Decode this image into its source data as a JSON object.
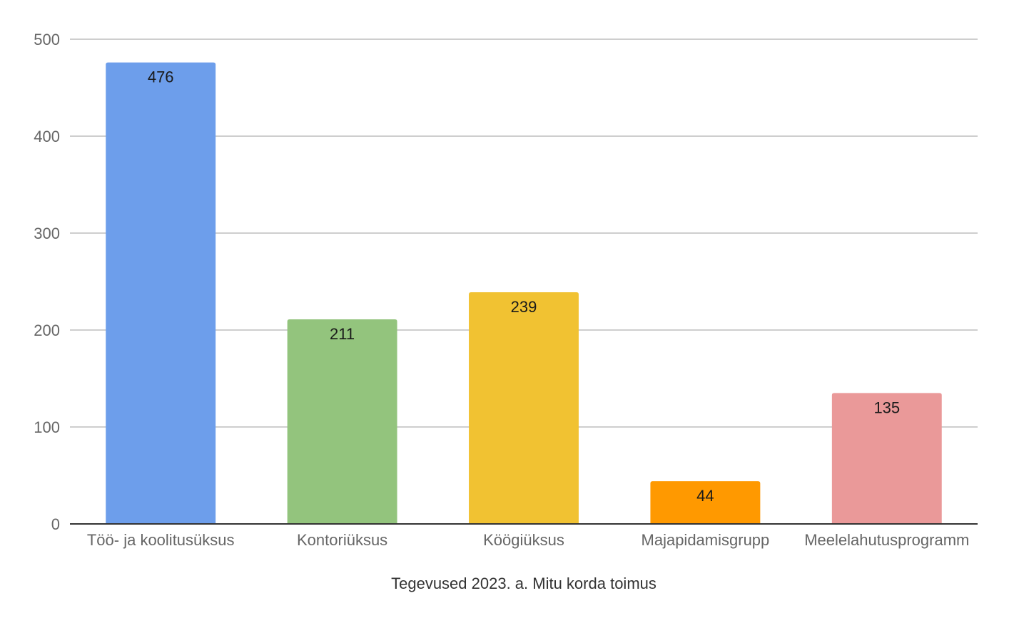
{
  "chart_data": {
    "type": "bar",
    "title": "",
    "xlabel": "Tegevused 2023. a. Mitu korda toimus",
    "ylabel": "",
    "ylim": [
      0,
      500
    ],
    "yticks": [
      0,
      100,
      200,
      300,
      400,
      500
    ],
    "grid": true,
    "legend": "none",
    "categories": [
      "Töö- ja koolitusüksus",
      "Kontoriüksus",
      "Köögiüksus",
      "Majapidamisgrupp",
      "Meelelahutusprogramm"
    ],
    "values": [
      476,
      211,
      239,
      44,
      135
    ],
    "colors": [
      "#6d9eeb",
      "#93c47d",
      "#f1c232",
      "#ff9900",
      "#ea9999"
    ]
  }
}
